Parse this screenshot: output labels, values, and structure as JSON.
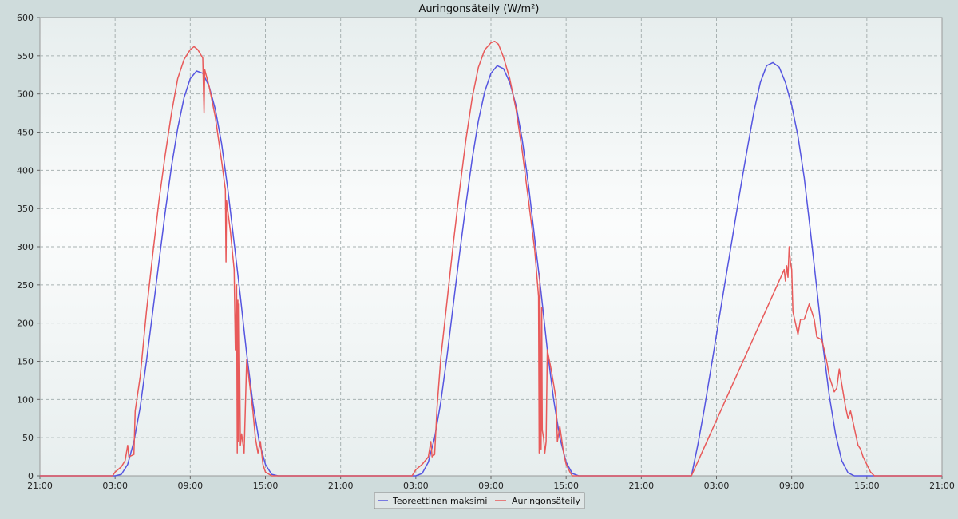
{
  "chart_data": {
    "type": "line",
    "title": "Auringonsäteily (W/m²)",
    "xlabel": "",
    "ylabel": "",
    "xlim": [
      0,
      72
    ],
    "ylim": [
      0,
      600
    ],
    "yticks": [
      0,
      50,
      100,
      150,
      200,
      250,
      300,
      350,
      400,
      450,
      500,
      550,
      600
    ],
    "xticks": [
      {
        "x": 0,
        "label": "21:00"
      },
      {
        "x": 6,
        "label": "03:00"
      },
      {
        "x": 12,
        "label": "09:00"
      },
      {
        "x": 18,
        "label": "15:00"
      },
      {
        "x": 24,
        "label": "21:00"
      },
      {
        "x": 30,
        "label": "03:00"
      },
      {
        "x": 36,
        "label": "09:00"
      },
      {
        "x": 42,
        "label": "15:00"
      },
      {
        "x": 48,
        "label": "21:00"
      },
      {
        "x": 54,
        "label": "03:00"
      },
      {
        "x": 60,
        "label": "09:00"
      },
      {
        "x": 66,
        "label": "15:00"
      },
      {
        "x": 72,
        "label": "21:00"
      }
    ],
    "grid": true,
    "legend_position": "bottom-center",
    "series": [
      {
        "name": "Teoreettinen maksimi",
        "color": "#5555e0",
        "points": [
          [
            0,
            0
          ],
          [
            6,
            0
          ],
          [
            6.5,
            2
          ],
          [
            7,
            15
          ],
          [
            7.5,
            45
          ],
          [
            8,
            90
          ],
          [
            8.5,
            150
          ],
          [
            9,
            215
          ],
          [
            9.5,
            280
          ],
          [
            10,
            345
          ],
          [
            10.5,
            405
          ],
          [
            11,
            455
          ],
          [
            11.5,
            495
          ],
          [
            12,
            520
          ],
          [
            12.5,
            530
          ],
          [
            13,
            527
          ],
          [
            13.5,
            510
          ],
          [
            14,
            480
          ],
          [
            14.5,
            435
          ],
          [
            15,
            375
          ],
          [
            15.5,
            305
          ],
          [
            16,
            235
          ],
          [
            16.5,
            160
          ],
          [
            17,
            95
          ],
          [
            17.5,
            45
          ],
          [
            18,
            15
          ],
          [
            18.5,
            2
          ],
          [
            19,
            0
          ],
          [
            24,
            0
          ],
          [
            30,
            0
          ],
          [
            30.5,
            3
          ],
          [
            31,
            18
          ],
          [
            31.5,
            50
          ],
          [
            32,
            97
          ],
          [
            32.5,
            158
          ],
          [
            33,
            225
          ],
          [
            33.5,
            292
          ],
          [
            34,
            355
          ],
          [
            34.5,
            415
          ],
          [
            35,
            465
          ],
          [
            35.5,
            503
          ],
          [
            36,
            527
          ],
          [
            36.5,
            537
          ],
          [
            37,
            533
          ],
          [
            37.5,
            515
          ],
          [
            38,
            485
          ],
          [
            38.5,
            440
          ],
          [
            39,
            380
          ],
          [
            39.5,
            310
          ],
          [
            40,
            240
          ],
          [
            40.5,
            165
          ],
          [
            41,
            100
          ],
          [
            41.5,
            50
          ],
          [
            42,
            18
          ],
          [
            42.5,
            3
          ],
          [
            43,
            0
          ],
          [
            48,
            0
          ],
          [
            52,
            0
          ],
          [
            52.5,
            40
          ],
          [
            53,
            85
          ],
          [
            53.5,
            135
          ],
          [
            54,
            185
          ],
          [
            54.5,
            235
          ],
          [
            55,
            285
          ],
          [
            55.5,
            335
          ],
          [
            56,
            385
          ],
          [
            56.5,
            432
          ],
          [
            57,
            478
          ],
          [
            57.5,
            515
          ],
          [
            58,
            537
          ],
          [
            58.5,
            541
          ],
          [
            59,
            535
          ],
          [
            59.5,
            515
          ],
          [
            60,
            485
          ],
          [
            60.5,
            445
          ],
          [
            61,
            390
          ],
          [
            61.5,
            320
          ],
          [
            62,
            245
          ],
          [
            62.5,
            170
          ],
          [
            63,
            105
          ],
          [
            63.5,
            55
          ],
          [
            64,
            20
          ],
          [
            64.5,
            4
          ],
          [
            65,
            0
          ],
          [
            72,
            0
          ]
        ]
      },
      {
        "name": "Auringonsäteily",
        "color": "#e85a5a",
        "points": [
          [
            0,
            0
          ],
          [
            5.8,
            0
          ],
          [
            6,
            5
          ],
          [
            6.5,
            12
          ],
          [
            6.8,
            20
          ],
          [
            7,
            40
          ],
          [
            7.1,
            25
          ],
          [
            7.5,
            28
          ],
          [
            7.6,
            85
          ],
          [
            8,
            130
          ],
          [
            8.5,
            215
          ],
          [
            9,
            290
          ],
          [
            9.5,
            360
          ],
          [
            10,
            420
          ],
          [
            10.5,
            475
          ],
          [
            11,
            520
          ],
          [
            11.5,
            545
          ],
          [
            12,
            558
          ],
          [
            12.3,
            562
          ],
          [
            12.6,
            558
          ],
          [
            13,
            547
          ],
          [
            13.1,
            475
          ],
          [
            13.15,
            532
          ],
          [
            13.5,
            510
          ],
          [
            14,
            470
          ],
          [
            14.5,
            412
          ],
          [
            14.8,
            375
          ],
          [
            14.85,
            280
          ],
          [
            14.9,
            360
          ],
          [
            15.2,
            320
          ],
          [
            15.5,
            270
          ],
          [
            15.6,
            165
          ],
          [
            15.7,
            250
          ],
          [
            15.75,
            30
          ],
          [
            15.8,
            230
          ],
          [
            15.85,
            45
          ],
          [
            15.9,
            225
          ],
          [
            16,
            40
          ],
          [
            16.1,
            55
          ],
          [
            16.3,
            30
          ],
          [
            16.5,
            152
          ],
          [
            17,
            85
          ],
          [
            17.2,
            50
          ],
          [
            17.4,
            30
          ],
          [
            17.6,
            45
          ],
          [
            17.8,
            15
          ],
          [
            18,
            5
          ],
          [
            18.5,
            0
          ],
          [
            24,
            0
          ],
          [
            29.7,
            0
          ],
          [
            30,
            8
          ],
          [
            30.5,
            15
          ],
          [
            31,
            25
          ],
          [
            31.2,
            45
          ],
          [
            31.3,
            25
          ],
          [
            31.5,
            28
          ],
          [
            31.7,
            90
          ],
          [
            32,
            155
          ],
          [
            32.5,
            230
          ],
          [
            33,
            305
          ],
          [
            33.5,
            375
          ],
          [
            34,
            440
          ],
          [
            34.5,
            495
          ],
          [
            35,
            535
          ],
          [
            35.5,
            558
          ],
          [
            36,
            567
          ],
          [
            36.3,
            569
          ],
          [
            36.6,
            565
          ],
          [
            37,
            548
          ],
          [
            37.5,
            520
          ],
          [
            38,
            480
          ],
          [
            38.5,
            425
          ],
          [
            39,
            360
          ],
          [
            39.5,
            295
          ],
          [
            39.8,
            235
          ],
          [
            39.85,
            30
          ],
          [
            39.9,
            265
          ],
          [
            40,
            35
          ],
          [
            40.05,
            220
          ],
          [
            40.1,
            60
          ],
          [
            40.2,
            50
          ],
          [
            40.3,
            30
          ],
          [
            40.4,
            45
          ],
          [
            40.5,
            165
          ],
          [
            40.8,
            140
          ],
          [
            41,
            120
          ],
          [
            41.2,
            100
          ],
          [
            41.3,
            45
          ],
          [
            41.5,
            65
          ],
          [
            41.8,
            30
          ],
          [
            42,
            15
          ],
          [
            42.3,
            5
          ],
          [
            42.5,
            0
          ],
          [
            52,
            0
          ],
          [
            59.4,
            270
          ],
          [
            59.5,
            255
          ],
          [
            59.6,
            275
          ],
          [
            59.7,
            260
          ],
          [
            59.8,
            300
          ],
          [
            59.9,
            280
          ],
          [
            60,
            270
          ],
          [
            60.1,
            215
          ],
          [
            60.3,
            200
          ],
          [
            60.5,
            185
          ],
          [
            60.7,
            205
          ],
          [
            61,
            205
          ],
          [
            61.2,
            215
          ],
          [
            61.4,
            225
          ],
          [
            61.6,
            215
          ],
          [
            61.8,
            205
          ],
          [
            62,
            182
          ],
          [
            62.2,
            180
          ],
          [
            62.4,
            178
          ],
          [
            62.6,
            165
          ],
          [
            62.8,
            150
          ],
          [
            63,
            130
          ],
          [
            63.2,
            120
          ],
          [
            63.4,
            110
          ],
          [
            63.6,
            115
          ],
          [
            63.8,
            140
          ],
          [
            64,
            120
          ],
          [
            64.3,
            90
          ],
          [
            64.5,
            75
          ],
          [
            64.7,
            85
          ],
          [
            64.9,
            70
          ],
          [
            65.1,
            55
          ],
          [
            65.3,
            40
          ],
          [
            65.5,
            35
          ],
          [
            65.7,
            25
          ],
          [
            66,
            15
          ],
          [
            66.3,
            5
          ],
          [
            66.6,
            0
          ],
          [
            72,
            0
          ]
        ]
      }
    ]
  }
}
